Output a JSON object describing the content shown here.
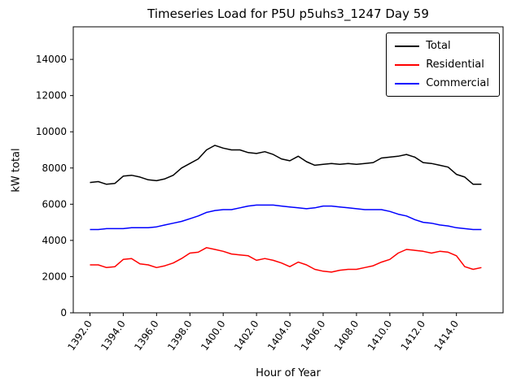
{
  "figure": {
    "title": "Timeseries Load for P5U p5uhs3_1247  Day 59"
  },
  "chart_data": {
    "type": "line",
    "title": "Timeseries Load for P5U p5uhs3_1247  Day 59",
    "xlabel": "Hour of Year",
    "ylabel": "kW total",
    "xlim": [
      1391.0,
      1416.8
    ],
    "ylim": [
      0,
      15800
    ],
    "x_ticks": [
      1392,
      1394,
      1396,
      1398,
      1400,
      1402,
      1404,
      1406,
      1408,
      1410,
      1412,
      1414
    ],
    "y_ticks": [
      0,
      2000,
      4000,
      6000,
      8000,
      10000,
      12000,
      14000
    ],
    "grid": false,
    "legend_position": "upper right",
    "x": [
      1392.0,
      1392.5,
      1393.0,
      1393.5,
      1394.0,
      1394.5,
      1395.0,
      1395.5,
      1396.0,
      1396.5,
      1397.0,
      1397.5,
      1398.0,
      1398.5,
      1399.0,
      1399.5,
      1400.0,
      1400.5,
      1401.0,
      1401.5,
      1402.0,
      1402.5,
      1403.0,
      1403.5,
      1404.0,
      1404.5,
      1405.0,
      1405.5,
      1406.0,
      1406.5,
      1407.0,
      1407.5,
      1408.0,
      1408.5,
      1409.0,
      1409.5,
      1410.0,
      1410.5,
      1411.0,
      1411.5,
      1412.0,
      1412.5,
      1413.0,
      1413.5,
      1414.0,
      1414.5,
      1415.0,
      1415.5
    ],
    "series": [
      {
        "name": "Total",
        "color": "#000000",
        "values": [
          7200,
          7250,
          7100,
          7150,
          7550,
          7600,
          7500,
          7350,
          7300,
          7400,
          7600,
          8000,
          8250,
          8500,
          9000,
          9250,
          9100,
          9000,
          9000,
          8850,
          8800,
          8900,
          8750,
          8500,
          8400,
          8650,
          8350,
          8150,
          8200,
          8250,
          8200,
          8250,
          8200,
          8250,
          8300,
          8550,
          8600,
          8650,
          8750,
          8600,
          8300,
          8250,
          8150,
          8050,
          7650,
          7500,
          7100,
          7100
        ]
      },
      {
        "name": "Residential",
        "color": "#ff0000",
        "values": [
          2650,
          2650,
          2500,
          2550,
          2950,
          3000,
          2700,
          2650,
          2500,
          2600,
          2750,
          3000,
          3300,
          3350,
          3600,
          3500,
          3400,
          3250,
          3200,
          3150,
          2900,
          3000,
          2900,
          2750,
          2550,
          2800,
          2650,
          2400,
          2300,
          2250,
          2350,
          2400,
          2400,
          2500,
          2600,
          2800,
          2950,
          3300,
          3500,
          3450,
          3400,
          3300,
          3400,
          3350,
          3150,
          2550,
          2400,
          2500
        ]
      },
      {
        "name": "Commercial",
        "color": "#0000ff",
        "values": [
          4600,
          4600,
          4650,
          4650,
          4650,
          4700,
          4700,
          4700,
          4750,
          4850,
          4950,
          5050,
          5200,
          5350,
          5550,
          5650,
          5700,
          5700,
          5800,
          5900,
          5950,
          5950,
          5950,
          5900,
          5850,
          5800,
          5750,
          5800,
          5900,
          5900,
          5850,
          5800,
          5750,
          5700,
          5700,
          5700,
          5600,
          5450,
          5350,
          5150,
          5000,
          4950,
          4850,
          4800,
          4700,
          4650,
          4600,
          4600
        ]
      }
    ]
  }
}
